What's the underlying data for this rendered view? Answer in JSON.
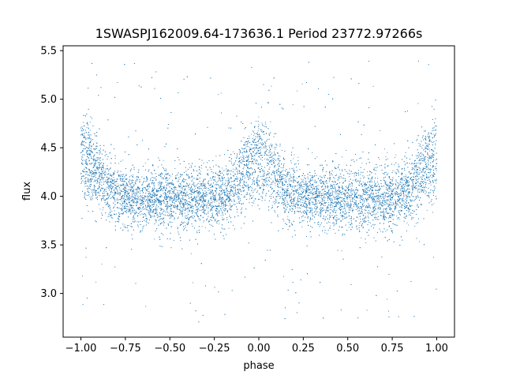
{
  "chart_data": {
    "type": "scatter",
    "title": "1SWASPJ162009.64-173636.1 Period 23772.97266s",
    "xlabel": "phase",
    "ylabel": "flux",
    "xlim": [
      -1.1,
      1.1
    ],
    "ylim": [
      2.55,
      5.55
    ],
    "x_ticks": [
      -1.0,
      -0.75,
      -0.5,
      -0.25,
      0.0,
      0.25,
      0.5,
      0.75,
      1.0
    ],
    "x_tick_labels": [
      "−1.00",
      "−0.75",
      "−0.50",
      "−0.25",
      "0.00",
      "0.25",
      "0.50",
      "0.75",
      "1.00"
    ],
    "y_ticks": [
      3.0,
      3.5,
      4.0,
      4.5,
      5.0,
      5.5
    ],
    "y_tick_labels": [
      "3.0",
      "3.5",
      "4.0",
      "4.5",
      "5.0",
      "5.5"
    ],
    "grid": false,
    "legend": "none",
    "series": [
      {
        "color": "#1f77b4",
        "marker_size": 1,
        "phase_range": [
          -1.0,
          1.0
        ],
        "baseline_flux": 3.98,
        "peak_flux": 4.55,
        "peak_phases": [
          -1.0,
          0.0,
          1.0
        ],
        "scatter_spread": 0.12,
        "outlier_range": [
          2.7,
          5.4
        ],
        "point_count": 14000
      }
    ]
  }
}
